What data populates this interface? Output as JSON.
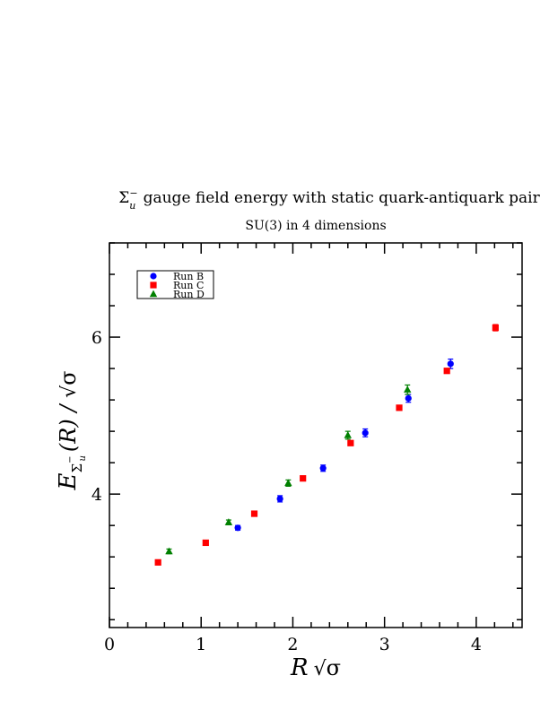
{
  "chart_data": {
    "type": "scatter",
    "title_parts": {
      "sigma": "Σ",
      "sub": "u",
      "sup": "−",
      "rest": "gauge field energy with static quark-antiquark pair"
    },
    "subtitle": "SU(3) in 4 dimensions",
    "xlabel": {
      "var": "R",
      "sqrt": "√",
      "sym": "σ"
    },
    "ylabel": {
      "E": "E",
      "sigma": "Σ",
      "sup": "−",
      "sub": "u",
      "arg": "(R) / ",
      "sqrt": "√",
      "sym": "σ"
    },
    "xlim": [
      0,
      4.5
    ],
    "ylim": [
      2.3,
      7.2
    ],
    "x_ticks": [
      0,
      1,
      2,
      3,
      4
    ],
    "x_tick_labels": [
      "0",
      "1",
      "2",
      "3",
      "4"
    ],
    "y_ticks": [
      4,
      6
    ],
    "y_tick_labels": [
      "4",
      "6"
    ],
    "legend_position": "top-left",
    "grid": false,
    "series": [
      {
        "name": "Run B",
        "color": "#0000ff",
        "marker": "circle",
        "points": [
          {
            "x": 1.4,
            "y": 3.57,
            "err": 0.03
          },
          {
            "x": 1.86,
            "y": 3.94,
            "err": 0.04
          },
          {
            "x": 2.33,
            "y": 4.33,
            "err": 0.04
          },
          {
            "x": 2.79,
            "y": 4.78,
            "err": 0.05
          },
          {
            "x": 3.26,
            "y": 5.22,
            "err": 0.05
          },
          {
            "x": 3.72,
            "y": 5.66,
            "err": 0.06
          }
        ]
      },
      {
        "name": "Run C",
        "color": "#ff0000",
        "marker": "square",
        "points": [
          {
            "x": 0.53,
            "y": 3.13,
            "err": 0.02
          },
          {
            "x": 1.05,
            "y": 3.38,
            "err": 0.02
          },
          {
            "x": 1.58,
            "y": 3.75,
            "err": 0.02
          },
          {
            "x": 2.11,
            "y": 4.2,
            "err": 0.02
          },
          {
            "x": 2.63,
            "y": 4.65,
            "err": 0.03
          },
          {
            "x": 3.16,
            "y": 5.1,
            "err": 0.03
          },
          {
            "x": 3.68,
            "y": 5.57,
            "err": 0.03
          },
          {
            "x": 4.21,
            "y": 6.12,
            "err": 0.04
          }
        ]
      },
      {
        "name": "Run D",
        "color": "#008000",
        "marker": "triangle",
        "points": [
          {
            "x": 0.65,
            "y": 3.27,
            "err": 0.03
          },
          {
            "x": 1.3,
            "y": 3.64,
            "err": 0.03
          },
          {
            "x": 1.95,
            "y": 4.14,
            "err": 0.04
          },
          {
            "x": 2.6,
            "y": 4.75,
            "err": 0.05
          },
          {
            "x": 3.25,
            "y": 5.33,
            "err": 0.06
          }
        ]
      }
    ]
  }
}
